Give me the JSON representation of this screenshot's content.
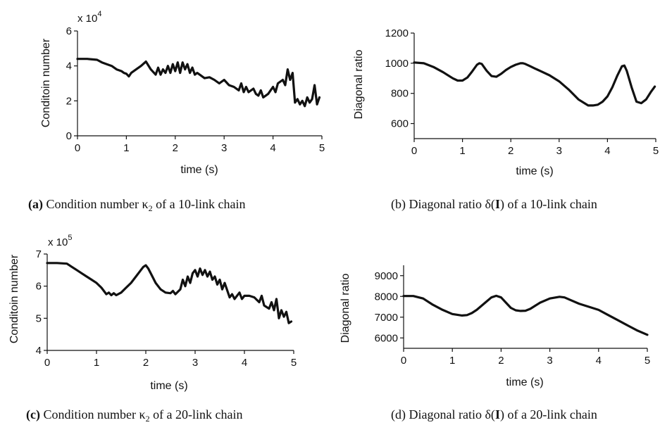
{
  "chart_data": [
    {
      "id": "a",
      "type": "line",
      "xlabel": "time (s)",
      "ylabel": "Conditoin number",
      "multiplier": "x 10",
      "multiplier_exp": "4",
      "xlim": [
        0,
        5
      ],
      "ylim": [
        0,
        6
      ],
      "xticks": [
        "0",
        "1",
        "2",
        "3",
        "4",
        "5"
      ],
      "yticks": [
        "0",
        "2",
        "4",
        "6"
      ],
      "caption": "(a) Condition number κ2 of a 10-link chain",
      "caption_parts": {
        "label": "(a)",
        "text": " Condition number κ",
        "sub": "2",
        "tail": " of a 10-link chain"
      },
      "series": [
        {
          "x": [
            0,
            0.2,
            0.4,
            0.5,
            0.6,
            0.7,
            0.8,
            0.9,
            0.95,
            1.0,
            1.05,
            1.1,
            1.2,
            1.3,
            1.4,
            1.5,
            1.6,
            1.65,
            1.7,
            1.75,
            1.8,
            1.85,
            1.9,
            1.95,
            2.0,
            2.05,
            2.1,
            2.15,
            2.2,
            2.25,
            2.3,
            2.35,
            2.4,
            2.45,
            2.5,
            2.6,
            2.7,
            2.8,
            2.9,
            3.0,
            3.1,
            3.2,
            3.3,
            3.35,
            3.4,
            3.45,
            3.5,
            3.6,
            3.65,
            3.7,
            3.75,
            3.8,
            3.9,
            4.0,
            4.05,
            4.1,
            4.2,
            4.25,
            4.3,
            4.35,
            4.4,
            4.45,
            4.5,
            4.55,
            4.6,
            4.65,
            4.7,
            4.75,
            4.8,
            4.85,
            4.9,
            4.95
          ],
          "y": [
            4.4,
            4.4,
            4.35,
            4.2,
            4.1,
            4.0,
            3.8,
            3.7,
            3.6,
            3.55,
            3.4,
            3.6,
            3.8,
            4.0,
            4.25,
            3.8,
            3.5,
            3.9,
            3.5,
            3.8,
            3.6,
            4.0,
            3.6,
            4.1,
            3.7,
            4.2,
            3.6,
            4.2,
            3.8,
            4.1,
            3.6,
            3.9,
            3.5,
            3.6,
            3.5,
            3.3,
            3.35,
            3.2,
            3.0,
            3.2,
            2.9,
            2.8,
            2.6,
            3.0,
            2.5,
            2.8,
            2.5,
            2.7,
            2.4,
            2.3,
            2.6,
            2.2,
            2.4,
            2.8,
            2.5,
            3.0,
            3.2,
            2.9,
            3.8,
            3.2,
            3.6,
            1.9,
            2.1,
            1.8,
            2.0,
            1.7,
            2.2,
            1.9,
            2.1,
            2.9,
            1.8,
            2.2
          ]
        }
      ]
    },
    {
      "id": "b",
      "type": "line",
      "xlabel": "time (s)",
      "ylabel": "Diagonal ratio",
      "xlim": [
        0,
        5
      ],
      "ylim": [
        500,
        1200
      ],
      "xticks": [
        "0",
        "1",
        "2",
        "3",
        "4",
        "5"
      ],
      "yticks": [
        "600",
        "800",
        "1000",
        "1200"
      ],
      "caption": "(b) Diagonal ratio δ(I) of a 10-link chain",
      "caption_parts": {
        "text": "(b) Diagonal ratio δ(",
        "bold": "I",
        "tail": ") of a 10-link chain"
      },
      "series": [
        {
          "x": [
            0,
            0.2,
            0.4,
            0.6,
            0.8,
            0.9,
            1.0,
            1.1,
            1.2,
            1.3,
            1.35,
            1.4,
            1.5,
            1.6,
            1.7,
            1.8,
            1.9,
            2.0,
            2.1,
            2.2,
            2.25,
            2.3,
            2.4,
            2.5,
            2.6,
            2.8,
            3.0,
            3.2,
            3.4,
            3.6,
            3.7,
            3.8,
            3.9,
            4.0,
            4.1,
            4.2,
            4.3,
            4.35,
            4.4,
            4.5,
            4.6,
            4.7,
            4.8,
            4.9,
            4.98
          ],
          "y": [
            1005,
            1000,
            975,
            940,
            900,
            885,
            885,
            905,
            945,
            990,
            1000,
            995,
            950,
            915,
            910,
            930,
            955,
            975,
            990,
            1000,
            1000,
            995,
            980,
            965,
            950,
            920,
            880,
            825,
            760,
            720,
            720,
            725,
            745,
            780,
            840,
            915,
            980,
            985,
            950,
            840,
            745,
            735,
            760,
            810,
            845
          ]
        }
      ]
    },
    {
      "id": "c",
      "type": "line",
      "xlabel": "time (s)",
      "ylabel": "Conditoin number",
      "multiplier": "x 10",
      "multiplier_exp": "5",
      "xlim": [
        0,
        5
      ],
      "ylim": [
        4,
        7
      ],
      "xticks": [
        "0",
        "1",
        "2",
        "3",
        "4",
        "5"
      ],
      "yticks": [
        "4",
        "5",
        "6",
        "7"
      ],
      "caption": "(c) Condition number κ2 of a 20-link chain",
      "caption_parts": {
        "label": "(c)",
        "text": " Condition number κ",
        "sub": "2",
        "tail": " of a 20-link chain"
      },
      "series": [
        {
          "x": [
            0,
            0.2,
            0.4,
            0.5,
            0.6,
            0.7,
            0.8,
            0.9,
            1.0,
            1.1,
            1.15,
            1.2,
            1.25,
            1.3,
            1.35,
            1.4,
            1.5,
            1.6,
            1.7,
            1.8,
            1.9,
            1.95,
            2.0,
            2.05,
            2.1,
            2.2,
            2.3,
            2.4,
            2.5,
            2.55,
            2.6,
            2.7,
            2.75,
            2.8,
            2.85,
            2.9,
            2.95,
            3.0,
            3.05,
            3.1,
            3.15,
            3.2,
            3.25,
            3.3,
            3.35,
            3.4,
            3.45,
            3.5,
            3.55,
            3.6,
            3.7,
            3.75,
            3.8,
            3.9,
            3.95,
            4.0,
            4.1,
            4.2,
            4.3,
            4.35,
            4.4,
            4.5,
            4.55,
            4.6,
            4.65,
            4.7,
            4.75,
            4.8,
            4.85,
            4.9,
            4.95
          ],
          "y": [
            6.72,
            6.72,
            6.7,
            6.6,
            6.5,
            6.4,
            6.3,
            6.2,
            6.1,
            5.95,
            5.85,
            5.75,
            5.8,
            5.72,
            5.78,
            5.72,
            5.8,
            5.95,
            6.1,
            6.3,
            6.5,
            6.6,
            6.65,
            6.55,
            6.4,
            6.1,
            5.9,
            5.8,
            5.78,
            5.85,
            5.75,
            5.9,
            6.2,
            6.0,
            6.3,
            6.1,
            6.4,
            6.5,
            6.3,
            6.55,
            6.35,
            6.5,
            6.3,
            6.45,
            6.2,
            6.3,
            6.05,
            6.2,
            5.9,
            6.1,
            5.65,
            5.75,
            5.6,
            5.8,
            5.6,
            5.7,
            5.7,
            5.65,
            5.5,
            5.7,
            5.4,
            5.3,
            5.5,
            5.25,
            5.6,
            5.0,
            5.25,
            5.05,
            5.2,
            4.85,
            4.9
          ]
        }
      ]
    },
    {
      "id": "d",
      "type": "line",
      "xlabel": "time (s)",
      "ylabel": "Diagonal ratio",
      "xlim": [
        0,
        5
      ],
      "ylim": [
        5500,
        9500
      ],
      "xticks": [
        "0",
        "1",
        "2",
        "3",
        "4",
        "5"
      ],
      "yticks": [
        "6000",
        "7000",
        "8000",
        "9000"
      ],
      "caption": "(d) Diagonal ratio δ(I) of a 20-link chain",
      "caption_parts": {
        "text": "(d) Diagonal ratio δ(",
        "bold": "I",
        "tail": ") of a 20-link chain"
      },
      "series": [
        {
          "x": [
            0,
            0.2,
            0.4,
            0.6,
            0.8,
            1.0,
            1.2,
            1.3,
            1.4,
            1.5,
            1.6,
            1.7,
            1.8,
            1.9,
            2.0,
            2.1,
            2.2,
            2.3,
            2.4,
            2.5,
            2.6,
            2.7,
            2.8,
            3.0,
            3.2,
            3.3,
            3.4,
            3.6,
            3.8,
            4.0,
            4.2,
            4.4,
            4.6,
            4.8,
            5.0
          ],
          "y": [
            8020,
            8020,
            7900,
            7600,
            7350,
            7150,
            7080,
            7100,
            7200,
            7350,
            7550,
            7750,
            7950,
            8030,
            7950,
            7700,
            7450,
            7330,
            7300,
            7310,
            7400,
            7550,
            7700,
            7900,
            7980,
            7950,
            7850,
            7650,
            7500,
            7350,
            7100,
            6850,
            6600,
            6350,
            6150
          ]
        }
      ]
    }
  ]
}
